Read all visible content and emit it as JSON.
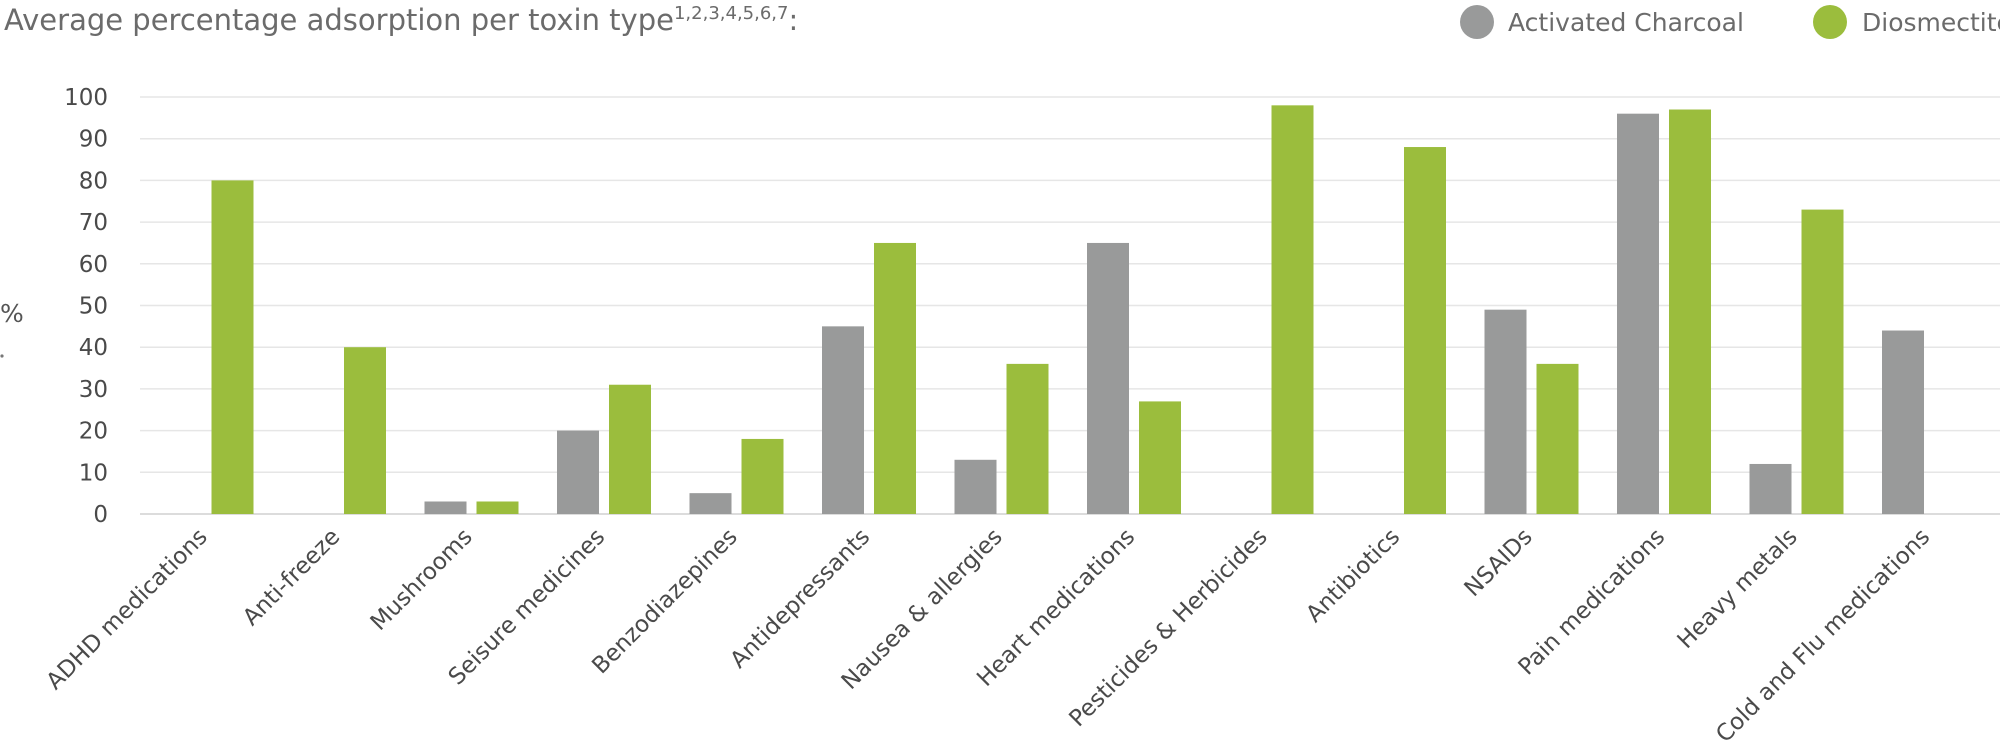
{
  "chart_data": {
    "type": "bar",
    "title": "Average percentage adsorption per toxin type",
    "title_superscript": "1,2,3,4,5,6,7",
    "title_suffix": ":",
    "ylabel": "%",
    "xlabel": "",
    "ylim": [
      0,
      100
    ],
    "yticks": [
      "0",
      "10",
      "20",
      "30",
      "40",
      "50",
      "60",
      "70",
      "80",
      "90",
      "100"
    ],
    "grid": true,
    "legend_position": "top-right",
    "categories": [
      "ADHD medications",
      "Anti-freeze",
      "Mushrooms",
      "Seisure medicines",
      "Benzodiazepines",
      "Antidepressants",
      "Nausea & allergies",
      "Heart medications",
      "Pesticides & Herbicides",
      "Antibiotics",
      "NSAIDs",
      "Pain medications",
      "Heavy metals",
      "Cold and Flu medications"
    ],
    "series": [
      {
        "name": "Activated Charcoal",
        "color": "#999a9a",
        "values": [
          null,
          null,
          3,
          20,
          5,
          45,
          13,
          65,
          null,
          null,
          49,
          96,
          12,
          44
        ]
      },
      {
        "name": "Diosmectite",
        "color": "#9bbd3d",
        "values": [
          80,
          40,
          3,
          31,
          18,
          65,
          36,
          27,
          98,
          88,
          36,
          97,
          73,
          null
        ]
      }
    ]
  }
}
